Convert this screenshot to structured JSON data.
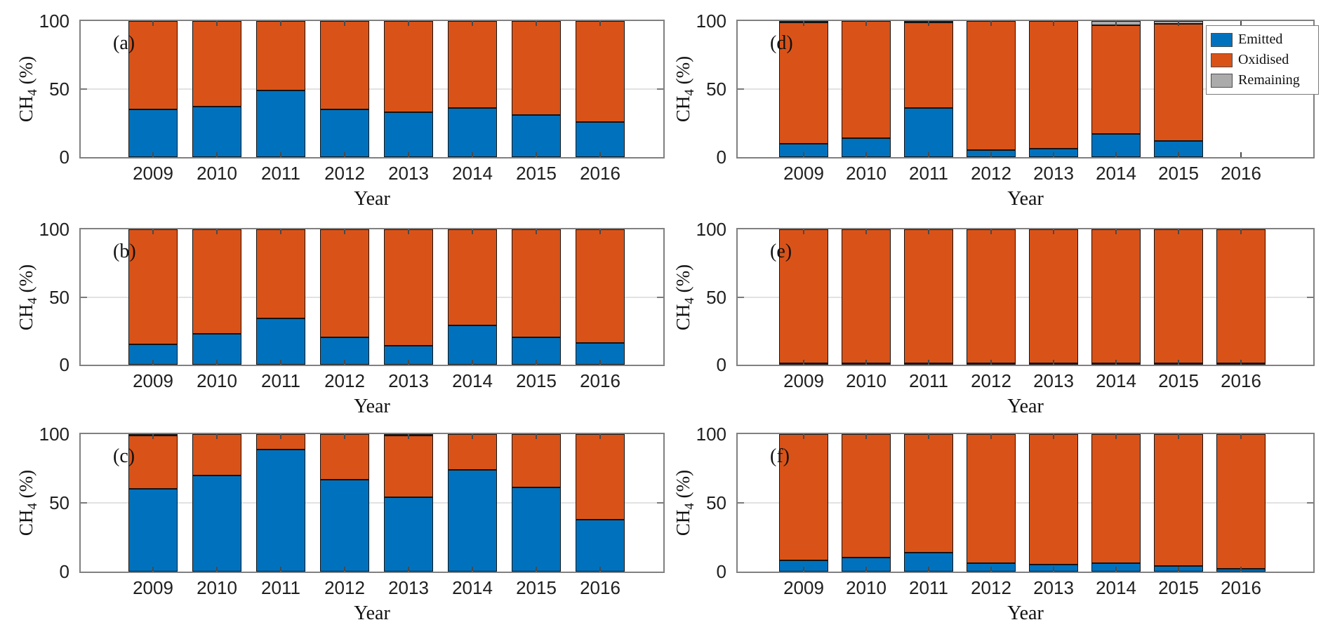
{
  "figure": {
    "background": "#ffffff",
    "description": "Six stacked bar subplots (a-f) of CH4 (%) per year"
  },
  "colors": {
    "emitted": "#0072BD",
    "oxidised": "#D95319",
    "remaining": "#ABABAB",
    "bar_edge": "#141414",
    "axis_box": "#808080",
    "grid": "#e2e2e2",
    "tick_text": "#1f1f1f"
  },
  "legend": {
    "panel": "d",
    "entries": [
      {
        "label": "Emitted",
        "color": "#0072BD"
      },
      {
        "label": "Oxidised",
        "color": "#D95319"
      },
      {
        "label": "Remaining",
        "color": "#ABABAB"
      }
    ]
  },
  "chart_data": [
    {
      "id": "a",
      "panel_label": "(a)",
      "type": "bar",
      "stacked": true,
      "categories": [
        "2009",
        "2010",
        "2011",
        "2012",
        "2013",
        "2014",
        "2015",
        "2016"
      ],
      "series": [
        {
          "name": "Emitted",
          "color": "#0072BD",
          "values": [
            35,
            37,
            49,
            35,
            33,
            36,
            31,
            26
          ]
        },
        {
          "name": "Oxidised",
          "color": "#D95319",
          "values": [
            65,
            63,
            51,
            65,
            67,
            64,
            69,
            74
          ]
        },
        {
          "name": "Remaining",
          "color": "#ABABAB",
          "values": [
            0,
            0,
            0,
            0,
            0,
            0,
            0,
            0
          ]
        }
      ],
      "xlabel": "Year",
      "ylabel": "CH4 (%)",
      "ylim": [
        0,
        100
      ],
      "yticks": [
        "0",
        "50",
        "100"
      ],
      "grid_y": [
        50
      ],
      "legend_here": false
    },
    {
      "id": "b",
      "panel_label": "(b)",
      "type": "bar",
      "stacked": true,
      "categories": [
        "2009",
        "2010",
        "2011",
        "2012",
        "2013",
        "2014",
        "2015",
        "2016"
      ],
      "series": [
        {
          "name": "Emitted",
          "color": "#0072BD",
          "values": [
            15,
            23,
            34,
            20,
            14,
            29,
            20,
            16
          ]
        },
        {
          "name": "Oxidised",
          "color": "#D95319",
          "values": [
            85,
            77,
            66,
            80,
            86,
            71,
            80,
            84
          ]
        },
        {
          "name": "Remaining",
          "color": "#ABABAB",
          "values": [
            0,
            0,
            0,
            0,
            0,
            0,
            0,
            0
          ]
        }
      ],
      "xlabel": "Year",
      "ylabel": "CH4 (%)",
      "ylim": [
        0,
        100
      ],
      "yticks": [
        "0",
        "50",
        "100"
      ],
      "grid_y": [
        50
      ],
      "legend_here": false
    },
    {
      "id": "c",
      "panel_label": "(c)",
      "type": "bar",
      "stacked": true,
      "categories": [
        "2009",
        "2010",
        "2011",
        "2012",
        "2013",
        "2014",
        "2015",
        "2016"
      ],
      "series": [
        {
          "name": "Emitted",
          "color": "#0072BD",
          "values": [
            60,
            70,
            89,
            67,
            54,
            74,
            61,
            38
          ]
        },
        {
          "name": "Oxidised",
          "color": "#D95319",
          "values": [
            39,
            30,
            11,
            33,
            45,
            26,
            39,
            62
          ]
        },
        {
          "name": "Remaining",
          "color": "#ABABAB",
          "values": [
            1,
            0,
            0,
            0,
            1,
            0,
            0,
            0
          ]
        }
      ],
      "xlabel": "Year",
      "ylabel": "CH4 (%)",
      "ylim": [
        0,
        100
      ],
      "yticks": [
        "0",
        "50",
        "100"
      ],
      "grid_y": [
        50
      ],
      "legend_here": false
    },
    {
      "id": "d",
      "panel_label": "(d)",
      "type": "bar",
      "stacked": true,
      "categories": [
        "2009",
        "2010",
        "2011",
        "2012",
        "2013",
        "2014",
        "2015",
        "2016"
      ],
      "series": [
        {
          "name": "Emitted",
          "color": "#0072BD",
          "values": [
            10,
            14,
            36,
            5,
            6,
            17,
            12,
            null
          ]
        },
        {
          "name": "Oxidised",
          "color": "#D95319",
          "values": [
            89,
            86,
            63,
            95,
            94,
            80,
            86,
            null
          ]
        },
        {
          "name": "Remaining",
          "color": "#ABABAB",
          "values": [
            1,
            0,
            1,
            0,
            0,
            3,
            2,
            null
          ]
        }
      ],
      "xlabel": "Year",
      "ylabel": "CH4 (%)",
      "ylim": [
        0,
        100
      ],
      "yticks": [
        "0",
        "50",
        "100"
      ],
      "grid_y": [
        50
      ],
      "legend_here": true
    },
    {
      "id": "e",
      "panel_label": "(e)",
      "type": "bar",
      "stacked": true,
      "categories": [
        "2009",
        "2010",
        "2011",
        "2012",
        "2013",
        "2014",
        "2015",
        "2016"
      ],
      "series": [
        {
          "name": "Emitted",
          "color": "#0072BD",
          "values": [
            1,
            1,
            1,
            1,
            1,
            1,
            1,
            1
          ]
        },
        {
          "name": "Oxidised",
          "color": "#D95319",
          "values": [
            99,
            99,
            99,
            99,
            99,
            99,
            99,
            99
          ]
        },
        {
          "name": "Remaining",
          "color": "#ABABAB",
          "values": [
            0,
            0,
            0,
            0,
            0,
            0,
            0,
            0
          ]
        }
      ],
      "xlabel": "Year",
      "ylabel": "CH4 (%)",
      "ylim": [
        0,
        100
      ],
      "yticks": [
        "0",
        "50",
        "100"
      ],
      "grid_y": [
        50
      ],
      "legend_here": false
    },
    {
      "id": "f",
      "panel_label": "(f)",
      "type": "bar",
      "stacked": true,
      "categories": [
        "2009",
        "2010",
        "2011",
        "2012",
        "2013",
        "2014",
        "2015",
        "2016"
      ],
      "series": [
        {
          "name": "Emitted",
          "color": "#0072BD",
          "values": [
            8,
            10,
            14,
            6,
            5,
            6,
            4,
            2
          ]
        },
        {
          "name": "Oxidised",
          "color": "#D95319",
          "values": [
            92,
            90,
            86,
            94,
            95,
            94,
            96,
            98
          ]
        },
        {
          "name": "Remaining",
          "color": "#ABABAB",
          "values": [
            0,
            0,
            0,
            0,
            0,
            0,
            0,
            0
          ]
        }
      ],
      "xlabel": "Year",
      "ylabel": "CH4 (%)",
      "ylim": [
        0,
        100
      ],
      "yticks": [
        "0",
        "50",
        "100"
      ],
      "grid_y": [
        50
      ],
      "legend_here": false
    }
  ]
}
